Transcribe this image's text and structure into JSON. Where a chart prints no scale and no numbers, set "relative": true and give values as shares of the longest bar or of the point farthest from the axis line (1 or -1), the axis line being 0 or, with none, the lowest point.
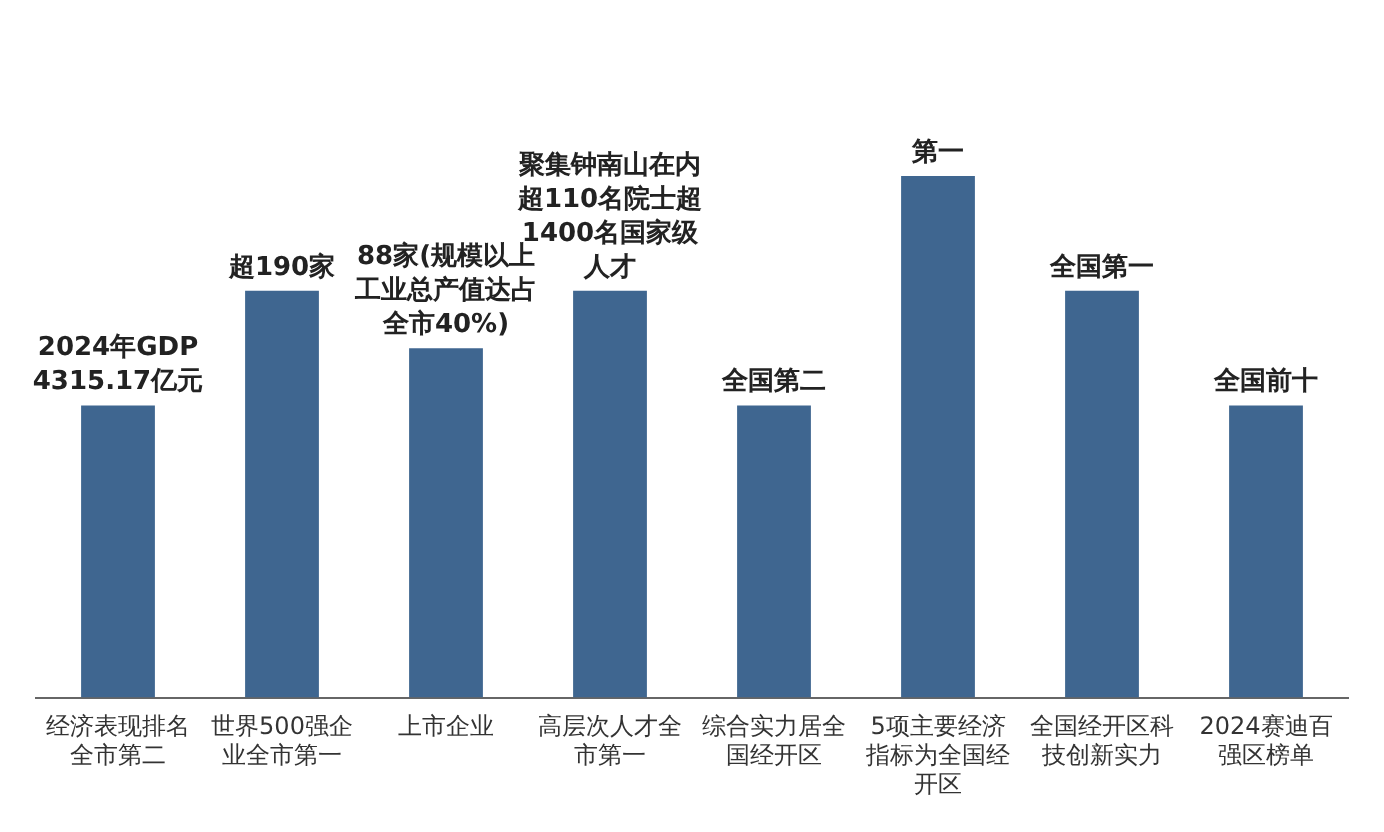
{
  "chart_data": {
    "type": "bar",
    "relative": true,
    "categories": [
      "经济表现排名全市第二",
      "世界500强企业全市第一",
      "上市企业",
      "高层次人才全市第一",
      "综合实力居全国经开区",
      "5项主要经济指标为全国经开区",
      "全国经开区科技创新实力",
      "2024赛迪百强区榜单"
    ],
    "values": [
      0.56,
      0.78,
      0.67,
      0.78,
      0.56,
      1,
      0.78,
      0.56
    ],
    "annotations": [
      {
        "text": "2024年GDP 4315.17亿元",
        "x": "经济表现排名全市第二",
        "y": 0.56
      },
      {
        "text": "超190家",
        "x": "世界500强企业全市第一",
        "y": 0.78
      },
      {
        "text": "88家(规模以上工业总产值达占全市40%)",
        "x": "上市企业",
        "y": 0.67
      },
      {
        "text": "聚集钟南山在内超110名院士超1400名国家级人才",
        "x": "高层次人才全市第一",
        "y": 0.78
      },
      {
        "text": "全国第二",
        "x": "综合实力居全国经开区",
        "y": 0.56
      },
      {
        "text": "第一",
        "x": "5项主要经济指标为全国经开区",
        "y": 1
      },
      {
        "text": "全国第一",
        "x": "全国经开区科技创新实力",
        "y": 0.78
      },
      {
        "text": "全国前十",
        "x": "2024赛迪百强区榜单",
        "y": 0.56
      }
    ],
    "color": "#3f6690",
    "grid": false,
    "legend": false
  }
}
